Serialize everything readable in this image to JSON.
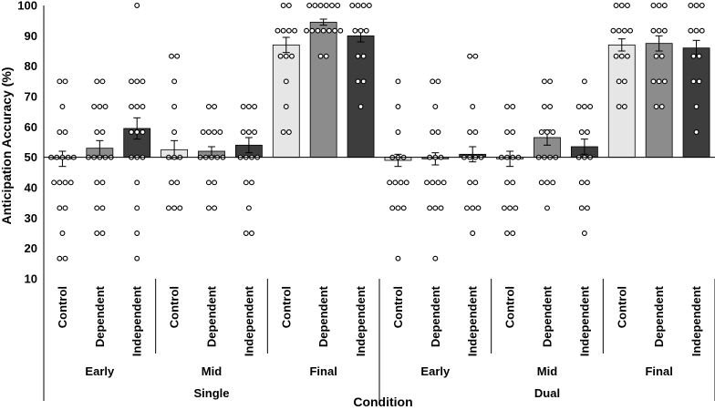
{
  "chart_data": {
    "type": "bar",
    "title": "",
    "xlabel": "Condition",
    "ylabel": "Anticipation Accuracy (%)",
    "ylim": [
      10,
      100
    ],
    "yticks": [
      10,
      20,
      30,
      40,
      50,
      60,
      70,
      80,
      90,
      100
    ],
    "bar_baseline": 50,
    "grid": false,
    "legend": "none",
    "conditions": [
      "Control",
      "Dependent",
      "Independent"
    ],
    "phases": [
      "Early",
      "Mid",
      "Final",
      "Early",
      "Mid",
      "Final"
    ],
    "tasks": [
      "Single",
      "Dual"
    ],
    "colors": {
      "Control": "#e6e6e6",
      "Dependent": "#8c8c8c",
      "Independent": "#3d3d3d"
    },
    "groups": [
      {
        "task": "Single",
        "phase": "Early",
        "condition": "Control",
        "mean": 49.5,
        "se": 2.5,
        "points": [
          75,
          75,
          66.7,
          58.3,
          58.3,
          50,
          50,
          50,
          50,
          50,
          41.7,
          41.7,
          41.7,
          41.7,
          33.3,
          33.3,
          25,
          16.7,
          16.7
        ]
      },
      {
        "task": "Single",
        "phase": "Early",
        "condition": "Dependent",
        "mean": 53,
        "se": 2.5,
        "points": [
          75,
          75,
          66.7,
          66.7,
          66.7,
          58.3,
          58.3,
          50,
          50,
          50,
          50,
          50,
          41.7,
          41.7,
          33.3,
          33.3,
          25,
          25
        ]
      },
      {
        "task": "Single",
        "phase": "Early",
        "condition": "Independent",
        "mean": 59.5,
        "se": 3.5,
        "points": [
          100,
          75,
          75,
          75,
          66.7,
          66.7,
          66.7,
          58.3,
          58.3,
          58.3,
          50,
          50,
          50,
          41.7,
          33.3,
          25,
          16.7
        ]
      },
      {
        "task": "Single",
        "phase": "Mid",
        "condition": "Control",
        "mean": 52.5,
        "se": 3,
        "points": [
          83.3,
          83.3,
          75,
          66.7,
          58.3,
          50,
          50,
          50,
          41.7,
          41.7,
          33.3,
          33.3,
          33.3
        ]
      },
      {
        "task": "Single",
        "phase": "Mid",
        "condition": "Dependent",
        "mean": 52,
        "se": 1.5,
        "points": [
          66.7,
          66.7,
          58.3,
          58.3,
          58.3,
          58.3,
          50,
          50,
          50,
          50,
          50,
          41.7,
          41.7,
          33.3,
          33.3
        ]
      },
      {
        "task": "Single",
        "phase": "Mid",
        "condition": "Independent",
        "mean": 54,
        "se": 2.5,
        "points": [
          66.7,
          66.7,
          66.7,
          58.3,
          58.3,
          58.3,
          50,
          50,
          50,
          50,
          41.7,
          41.7,
          33.3,
          25,
          25
        ]
      },
      {
        "task": "Single",
        "phase": "Final",
        "condition": "Control",
        "mean": 87,
        "se": 2.5,
        "points": [
          100,
          100,
          91.7,
          91.7,
          91.7,
          91.7,
          83.3,
          83.3,
          83.3,
          75,
          66.7,
          58.3,
          58.3
        ]
      },
      {
        "task": "Single",
        "phase": "Final",
        "condition": "Dependent",
        "mean": 94.5,
        "se": 1,
        "points": [
          100,
          100,
          100,
          100,
          100,
          100,
          91.7,
          91.7,
          91.7,
          91.7,
          91.7,
          91.7,
          91.7,
          83.3,
          83.3
        ]
      },
      {
        "task": "Single",
        "phase": "Final",
        "condition": "Independent",
        "mean": 90,
        "se": 2,
        "points": [
          100,
          100,
          100,
          100,
          91.7,
          91.7,
          91.7,
          83.3,
          83.3,
          75,
          75,
          66.7
        ]
      },
      {
        "task": "Dual",
        "phase": "Early",
        "condition": "Control",
        "mean": 49,
        "se": 2,
        "points": [
          75,
          66.7,
          58.3,
          50,
          50,
          50,
          41.7,
          41.7,
          41.7,
          41.7,
          33.3,
          33.3,
          33.3,
          16.7
        ]
      },
      {
        "task": "Dual",
        "phase": "Early",
        "condition": "Dependent",
        "mean": 49.5,
        "se": 2,
        "points": [
          75,
          75,
          66.7,
          58.3,
          58.3,
          50,
          50,
          50,
          41.7,
          41.7,
          41.7,
          41.7,
          33.3,
          33.3,
          33.3,
          16.7
        ]
      },
      {
        "task": "Dual",
        "phase": "Early",
        "condition": "Independent",
        "mean": 51,
        "se": 2.5,
        "points": [
          83.3,
          83.3,
          66.7,
          58.3,
          58.3,
          50,
          50,
          50,
          50,
          41.7,
          41.7,
          33.3,
          33.3,
          33.3,
          25
        ]
      },
      {
        "task": "Dual",
        "phase": "Mid",
        "condition": "Control",
        "mean": 49.5,
        "se": 2.5,
        "points": [
          66.7,
          66.7,
          58.3,
          58.3,
          50,
          50,
          50,
          50,
          41.7,
          41.7,
          33.3,
          33.3,
          33.3,
          25,
          25
        ]
      },
      {
        "task": "Dual",
        "phase": "Mid",
        "condition": "Dependent",
        "mean": 56.5,
        "se": 2.5,
        "points": [
          75,
          75,
          66.7,
          66.7,
          58.3,
          58.3,
          58.3,
          50,
          50,
          50,
          50,
          41.7,
          41.7,
          41.7,
          33.3
        ]
      },
      {
        "task": "Dual",
        "phase": "Mid",
        "condition": "Independent",
        "mean": 53.5,
        "se": 2.5,
        "points": [
          75,
          66.7,
          66.7,
          66.7,
          58.3,
          58.3,
          50,
          50,
          50,
          41.7,
          41.7,
          33.3,
          33.3,
          25
        ]
      },
      {
        "task": "Dual",
        "phase": "Final",
        "condition": "Control",
        "mean": 87,
        "se": 2,
        "points": [
          100,
          100,
          100,
          91.7,
          91.7,
          91.7,
          91.7,
          83.3,
          83.3,
          83.3,
          75,
          75,
          66.7,
          66.7
        ]
      },
      {
        "task": "Dual",
        "phase": "Final",
        "condition": "Dependent",
        "mean": 87.5,
        "se": 2.5,
        "points": [
          100,
          100,
          100,
          91.7,
          91.7,
          91.7,
          83.3,
          83.3,
          75,
          75,
          75,
          66.7,
          66.7
        ]
      },
      {
        "task": "Dual",
        "phase": "Final",
        "condition": "Independent",
        "mean": 86,
        "se": 2.5,
        "points": [
          100,
          100,
          100,
          91.7,
          91.7,
          91.7,
          83.3,
          83.3,
          75,
          75,
          66.7,
          58.3
        ]
      }
    ]
  }
}
